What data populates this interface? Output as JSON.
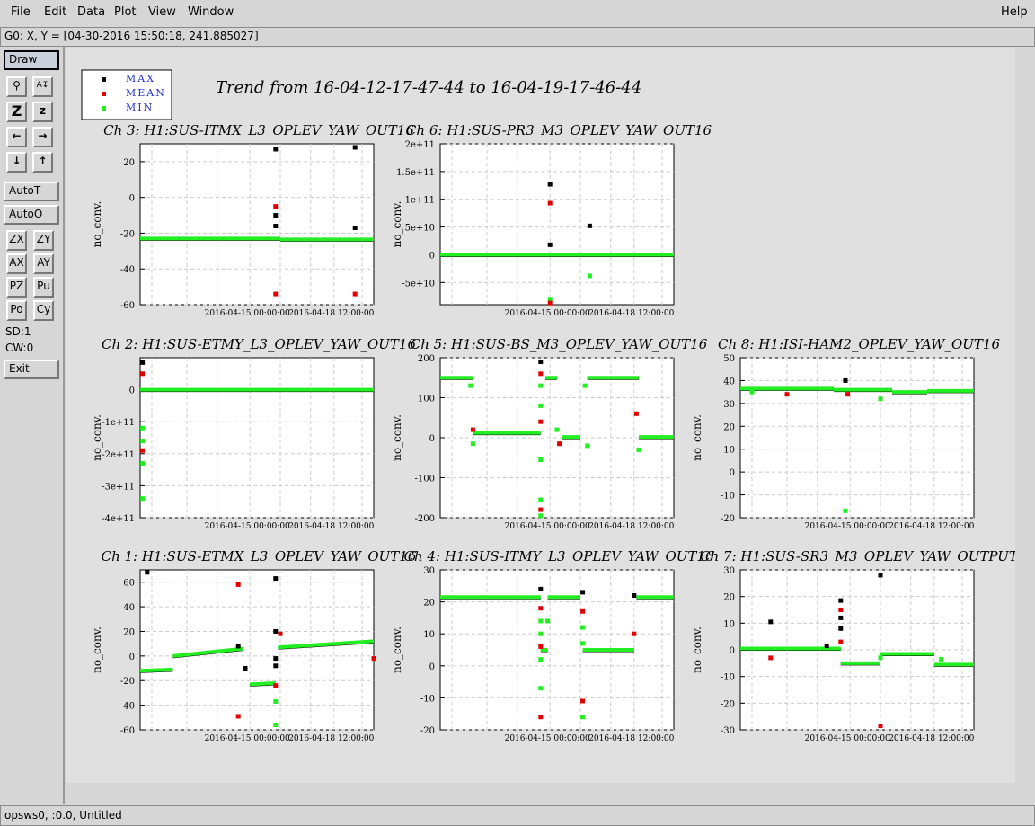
{
  "menu": {
    "file": "File",
    "edit": "Edit",
    "data": "Data",
    "plot": "Plot",
    "view": "View",
    "window": "Window",
    "help": "Help"
  },
  "coord_readout": "G0: X, Y = [04-30-2016 15:50:18, 241.885027]",
  "toolbar": {
    "draw": "Draw",
    "autot": "AutoT",
    "autoo": "AutoO",
    "zx": "ZX",
    "zy": "ZY",
    "ax": "AX",
    "ay": "AY",
    "pz": "PZ",
    "pu": "Pu",
    "po": "Po",
    "cy": "Cy",
    "sd": "SD:1",
    "cw": "CW:0",
    "exit": "Exit"
  },
  "status": "opsws0, :0.0, Untitled",
  "legend": [
    {
      "label": "MAX",
      "color": "#000000"
    },
    {
      "label": "MEAN",
      "color": "#e00000"
    },
    {
      "label": "MIN",
      "color": "#22ee22"
    }
  ],
  "main_title": "Trend from 16-04-12-17-47-44 to 16-04-19-17-46-44",
  "chart_data": [
    {
      "type": "scatter",
      "title": "Ch 3: H1:SUS-ITMX_L3_OPLEV_YAW_OUT16",
      "ylabel": "no_conv.",
      "ylim": [
        -60,
        30
      ],
      "yticks": [
        {
          "v": 20,
          "t": "20"
        },
        {
          "v": 0,
          "t": "0"
        },
        {
          "v": -20,
          "t": "-20"
        },
        {
          "v": -40,
          "t": "-40"
        },
        {
          "v": -60,
          "t": "-60"
        }
      ],
      "xticks": [
        "2016-04-15 00:00:00",
        "2016-04-18 12:00:00"
      ],
      "series": [
        {
          "segments": [
            [
              0,
              0.6,
              -23
            ],
            [
              0.6,
              1.0,
              -23.5
            ]
          ]
        },
        {
          "points": [
            [
              0.58,
              27
            ],
            [
              0.58,
              -5
            ],
            [
              0.58,
              -10
            ],
            [
              0.58,
              -16
            ],
            [
              0.58,
              -54
            ],
            [
              0.92,
              28
            ],
            [
              0.92,
              -17
            ],
            [
              0.92,
              -54
            ]
          ]
        }
      ]
    },
    {
      "type": "scatter",
      "title": "Ch 6: H1:SUS-PR3_M3_OPLEV_YAW_OUT16",
      "ylabel": "no_conv.",
      "ylim": [
        -90000000000,
        200000000000
      ],
      "yticks": [
        {
          "v": 200000000000,
          "t": "2e+11"
        },
        {
          "v": 150000000000,
          "t": "1.5e+11"
        },
        {
          "v": 100000000000,
          "t": "1e+11"
        },
        {
          "v": 50000000000,
          "t": "5e+10"
        },
        {
          "v": 0,
          "t": "0"
        },
        {
          "v": -50000000000,
          "t": "-5e+10"
        }
      ],
      "xticks": [
        "2016-04-15 00:00:00",
        "2016-04-18 12:00:00"
      ],
      "series": [
        {
          "segments": [
            [
              0,
              1.0,
              0
            ]
          ]
        },
        {
          "points": [
            [
              0.47,
              127000000000
            ],
            [
              0.47,
              93000000000
            ],
            [
              0.47,
              18000000000
            ],
            [
              0.47,
              -80000000000
            ],
            [
              0.47,
              -87000000000
            ],
            [
              0.64,
              52000000000
            ],
            [
              0.64,
              -38000000000
            ]
          ]
        }
      ]
    },
    {
      "type": "scatter",
      "title": "Ch 2: H1:SUS-ETMY_L3_OPLEV_YAW_OUT16",
      "ylabel": "no_conv.",
      "ylim": [
        -400000000000,
        100000000000
      ],
      "yticks": [
        {
          "v": 0,
          "t": "0"
        },
        {
          "v": -100000000000,
          "t": "-1e+11"
        },
        {
          "v": -200000000000,
          "t": "-2e+11"
        },
        {
          "v": -300000000000,
          "t": "-3e+11"
        },
        {
          "v": -400000000000,
          "t": "-4e+11"
        }
      ],
      "xticks": [
        "2016-04-15 00:00:00",
        "2016-04-18 12:00:00"
      ],
      "series": [
        {
          "segments": [
            [
              0,
              1.0,
              0
            ]
          ]
        },
        {
          "points": [
            [
              0.01,
              85000000000
            ],
            [
              0.01,
              50000000000
            ],
            [
              0.01,
              -120000000000
            ],
            [
              0.01,
              -160000000000
            ],
            [
              0.01,
              -190000000000
            ],
            [
              0.01,
              -230000000000
            ],
            [
              0.01,
              -340000000000
            ]
          ]
        }
      ]
    },
    {
      "type": "scatter",
      "title": "Ch 5: H1:SUS-BS_M3_OPLEV_YAW_OUT16",
      "ylabel": "no_conv.",
      "ylim": [
        -200,
        200
      ],
      "yticks": [
        {
          "v": 200,
          "t": "200"
        },
        {
          "v": 100,
          "t": "100"
        },
        {
          "v": 0,
          "t": "0"
        },
        {
          "v": -100,
          "t": "-100"
        },
        {
          "v": -200,
          "t": "-200"
        }
      ],
      "xticks": [
        "2016-04-15 00:00:00",
        "2016-04-18 12:00:00"
      ],
      "series": [
        {
          "segments": [
            [
              0,
              0.14,
              150
            ],
            [
              0.14,
              0.43,
              12
            ],
            [
              0.45,
              0.5,
              150
            ],
            [
              0.52,
              0.6,
              2
            ],
            [
              0.63,
              0.85,
              150
            ],
            [
              0.85,
              1.0,
              2
            ]
          ]
        },
        {
          "points": [
            [
              0.13,
              130
            ],
            [
              0.14,
              20
            ],
            [
              0.14,
              -15
            ],
            [
              0.43,
              190
            ],
            [
              0.43,
              160
            ],
            [
              0.43,
              130
            ],
            [
              0.43,
              80
            ],
            [
              0.43,
              40
            ],
            [
              0.43,
              -55
            ],
            [
              0.43,
              -155
            ],
            [
              0.43,
              -180
            ],
            [
              0.43,
              -195
            ],
            [
              0.5,
              20
            ],
            [
              0.51,
              -15
            ],
            [
              0.62,
              130
            ],
            [
              0.63,
              -20
            ],
            [
              0.84,
              60
            ],
            [
              0.85,
              -30
            ]
          ]
        }
      ]
    },
    {
      "type": "scatter",
      "title": "Ch 8: H1:ISI-HAM2_OPLEV_YAW_OUT16",
      "ylabel": "no_conv.",
      "ylim": [
        -20,
        50
      ],
      "yticks": [
        {
          "v": 50,
          "t": "50"
        },
        {
          "v": 40,
          "t": "40"
        },
        {
          "v": 30,
          "t": "30"
        },
        {
          "v": 20,
          "t": "20"
        },
        {
          "v": 10,
          "t": "10"
        },
        {
          "v": 0,
          "t": "0"
        },
        {
          "v": -10,
          "t": "-10"
        },
        {
          "v": -20,
          "t": "-20"
        }
      ],
      "xticks": [
        "2016-04-15 00:00:00",
        "2016-04-18 12:00:00"
      ],
      "series": [
        {
          "segments": [
            [
              0,
              0.4,
              36.5
            ],
            [
              0.4,
              0.65,
              36
            ],
            [
              0.65,
              0.8,
              35
            ],
            [
              0.8,
              1.0,
              35.5
            ]
          ]
        },
        {
          "points": [
            [
              0.05,
              35
            ],
            [
              0.2,
              34
            ],
            [
              0.45,
              40
            ],
            [
              0.45,
              -17
            ],
            [
              0.46,
              34
            ],
            [
              0.6,
              32
            ]
          ]
        }
      ]
    },
    {
      "type": "scatter",
      "title": "Ch 1: H1:SUS-ETMX_L3_OPLEV_YAW_OUT16",
      "ylabel": "no_conv.",
      "ylim": [
        -60,
        70
      ],
      "yticks": [
        {
          "v": 60,
          "t": "60"
        },
        {
          "v": 40,
          "t": "40"
        },
        {
          "v": 20,
          "t": "20"
        },
        {
          "v": 0,
          "t": "0"
        },
        {
          "v": -20,
          "t": "-20"
        },
        {
          "v": -40,
          "t": "-40"
        },
        {
          "v": -60,
          "t": "-60"
        }
      ],
      "xticks": [
        "2016-04-15 00:00:00",
        "2016-04-18 12:00:00"
      ],
      "series": [
        {
          "segments": [
            [
              0,
              0.14,
              -12,
              -11
            ],
            [
              0.14,
              0.44,
              0,
              6
            ],
            [
              0.47,
              0.58,
              -23,
              -22
            ],
            [
              0.59,
              1.0,
              7,
              12
            ]
          ]
        },
        {
          "points": [
            [
              0.03,
              68
            ],
            [
              0.42,
              58
            ],
            [
              0.42,
              8
            ],
            [
              0.45,
              -10
            ],
            [
              0.42,
              -49
            ],
            [
              0.58,
              63
            ],
            [
              0.58,
              20
            ],
            [
              0.6,
              18
            ],
            [
              0.58,
              -2
            ],
            [
              0.58,
              -8
            ],
            [
              0.58,
              -24
            ],
            [
              0.58,
              -37
            ],
            [
              0.58,
              -56
            ],
            [
              1.0,
              -2
            ]
          ]
        }
      ]
    },
    {
      "type": "scatter",
      "title": "Ch 4: H1:SUS-ITMY_L3_OPLEV_YAW_OUT16",
      "ylabel": "no_conv.",
      "ylim": [
        -20,
        30
      ],
      "yticks": [
        {
          "v": 30,
          "t": "30"
        },
        {
          "v": 20,
          "t": "20"
        },
        {
          "v": 10,
          "t": "10"
        },
        {
          "v": 0,
          "t": "0"
        },
        {
          "v": -10,
          "t": "-10"
        },
        {
          "v": -20,
          "t": "-20"
        }
      ],
      "xticks": [
        "2016-04-15 00:00:00",
        "2016-04-18 12:00:00"
      ],
      "series": [
        {
          "segments": [
            [
              0,
              0.43,
              21.5
            ],
            [
              0.43,
              0.46,
              5
            ],
            [
              0.46,
              0.6,
              21.5
            ],
            [
              0.61,
              0.83,
              5
            ],
            [
              0.84,
              1.0,
              21.5
            ]
          ]
        },
        {
          "points": [
            [
              0.43,
              24
            ],
            [
              0.43,
              18
            ],
            [
              0.43,
              14
            ],
            [
              0.43,
              10
            ],
            [
              0.43,
              6
            ],
            [
              0.43,
              2
            ],
            [
              0.43,
              -7
            ],
            [
              0.43,
              -16
            ],
            [
              0.46,
              14
            ],
            [
              0.61,
              23
            ],
            [
              0.61,
              17
            ],
            [
              0.61,
              12
            ],
            [
              0.61,
              7
            ],
            [
              0.61,
              -11
            ],
            [
              0.61,
              -16
            ],
            [
              0.83,
              22
            ],
            [
              0.83,
              10
            ]
          ]
        }
      ]
    },
    {
      "type": "scatter",
      "title": "Ch 7: H1:SUS-SR3_M3_OPLEV_YAW_OUTPUT",
      "ylabel": "no_conv.",
      "ylim": [
        -30,
        30
      ],
      "yticks": [
        {
          "v": 30,
          "t": "30"
        },
        {
          "v": 20,
          "t": "20"
        },
        {
          "v": 10,
          "t": "10"
        },
        {
          "v": 0,
          "t": "0"
        },
        {
          "v": -10,
          "t": "-10"
        },
        {
          "v": -20,
          "t": "-20"
        },
        {
          "v": -30,
          "t": "-30"
        }
      ],
      "xticks": [
        "2016-04-15 00:00:00",
        "2016-04-18 12:00:00"
      ],
      "series": [
        {
          "segments": [
            [
              0,
              0.43,
              0.5
            ],
            [
              0.43,
              0.6,
              -5
            ],
            [
              0.6,
              0.83,
              -1.5
            ],
            [
              0.83,
              1.0,
              -5.5
            ]
          ]
        },
        {
          "points": [
            [
              0.13,
              10.5
            ],
            [
              0.13,
              -3
            ],
            [
              0.37,
              1.5
            ],
            [
              0.43,
              18.5
            ],
            [
              0.43,
              15
            ],
            [
              0.43,
              12
            ],
            [
              0.43,
              8
            ],
            [
              0.43,
              3
            ],
            [
              0.6,
              28
            ],
            [
              0.6,
              -3
            ],
            [
              0.6,
              -28.5
            ],
            [
              0.86,
              -3.5
            ]
          ]
        }
      ]
    }
  ]
}
